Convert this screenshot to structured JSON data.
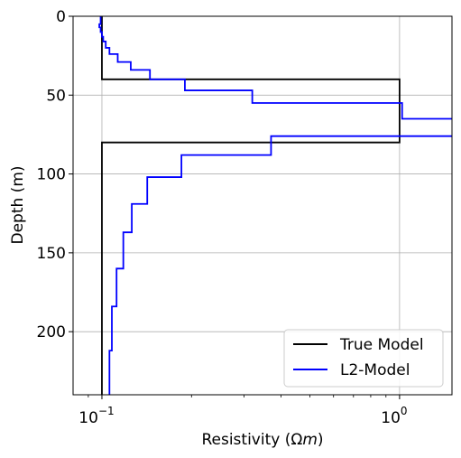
{
  "chart_data": {
    "type": "line",
    "title": "",
    "xlabel_main": "Resistivity (",
    "xlabel_omega": "Ω",
    "xlabel_m": "m",
    "xlabel_close": ")",
    "ylabel": "Depth (m)",
    "x_scale": "log",
    "xlim": [
      0.08,
      1.5
    ],
    "ylim": [
      240,
      0
    ],
    "y_inverted": true,
    "grid": true,
    "legend_position": "lower-right",
    "x_major_ticks": [
      {
        "value": 0.1,
        "base": "10",
        "exp": "−1"
      },
      {
        "value": 1.0,
        "base": "10",
        "exp": "0"
      }
    ],
    "y_ticks": [
      {
        "value": 0,
        "label": "0"
      },
      {
        "value": 50,
        "label": "50"
      },
      {
        "value": 100,
        "label": "100"
      },
      {
        "value": 150,
        "label": "150"
      },
      {
        "value": 200,
        "label": "200"
      }
    ],
    "series": [
      {
        "name": "True Model",
        "color": "#000000",
        "step_profile": [
          {
            "resistivity": 0.1,
            "top": 0,
            "bottom": 40
          },
          {
            "resistivity": 1.0,
            "top": 40,
            "bottom": 80
          },
          {
            "resistivity": 0.1,
            "top": 80,
            "bottom": 240
          }
        ]
      },
      {
        "name": "L2-Model",
        "color": "#0000ff",
        "step_profile": [
          {
            "resistivity": 0.099,
            "top": 0,
            "bottom": 5
          },
          {
            "resistivity": 0.098,
            "top": 5,
            "bottom": 7
          },
          {
            "resistivity": 0.099,
            "top": 7,
            "bottom": 10
          },
          {
            "resistivity": 0.1,
            "top": 10,
            "bottom": 13
          },
          {
            "resistivity": 0.101,
            "top": 13,
            "bottom": 16
          },
          {
            "resistivity": 0.103,
            "top": 16,
            "bottom": 20
          },
          {
            "resistivity": 0.106,
            "top": 20,
            "bottom": 24
          },
          {
            "resistivity": 0.113,
            "top": 24,
            "bottom": 29
          },
          {
            "resistivity": 0.125,
            "top": 29,
            "bottom": 34
          },
          {
            "resistivity": 0.145,
            "top": 34,
            "bottom": 40
          },
          {
            "resistivity": 0.19,
            "top": 40,
            "bottom": 47
          },
          {
            "resistivity": 0.32,
            "top": 47,
            "bottom": 55
          },
          {
            "resistivity": 1.02,
            "top": 55,
            "bottom": 65
          },
          {
            "resistivity": 1.6,
            "top": 65,
            "bottom": 76
          },
          {
            "resistivity": 0.37,
            "top": 76,
            "bottom": 88
          },
          {
            "resistivity": 0.185,
            "top": 88,
            "bottom": 102
          },
          {
            "resistivity": 0.142,
            "top": 102,
            "bottom": 119
          },
          {
            "resistivity": 0.126,
            "top": 119,
            "bottom": 137
          },
          {
            "resistivity": 0.118,
            "top": 137,
            "bottom": 160
          },
          {
            "resistivity": 0.112,
            "top": 160,
            "bottom": 184
          },
          {
            "resistivity": 0.108,
            "top": 184,
            "bottom": 212
          },
          {
            "resistivity": 0.106,
            "top": 212,
            "bottom": 240
          }
        ]
      }
    ]
  }
}
